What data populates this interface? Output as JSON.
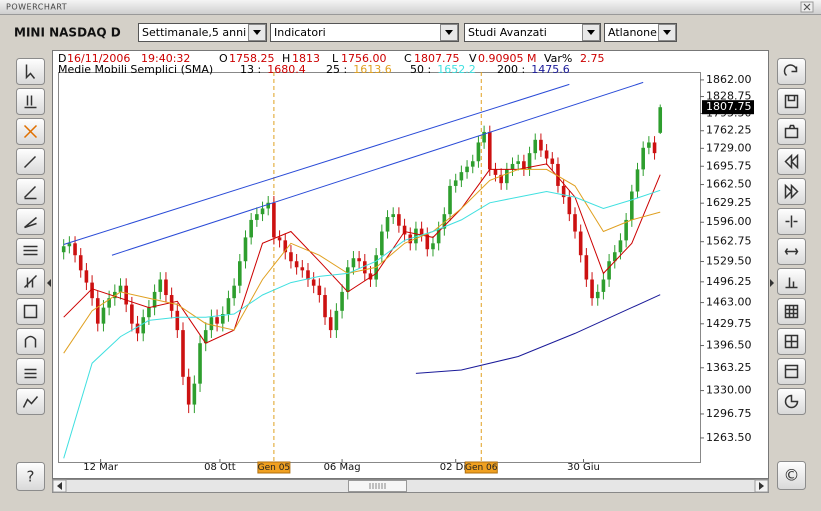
{
  "window": {
    "title": "POWERCHART"
  },
  "toolbar": {
    "symbol": "MINI NASDAQ D",
    "period": "Settimanale,5 anni",
    "indicators": "Indicatori",
    "studies": "Studi Avanzati",
    "style": "Atlanone"
  },
  "buttons": {
    "help": "?",
    "copyright": "©"
  },
  "info": {
    "date_prefix": "D",
    "date": "16/11/2006",
    "time": "19:40:32",
    "o_prefix": "O",
    "h_prefix": "H",
    "l_prefix": "L",
    "low": "1756.00",
    "c_prefix": "C",
    "v_prefix": "V",
    "volume": "0.90905 M",
    "var_prefix": "Var%",
    "var": 2.75
  },
  "chart_data": {
    "type": "candlestick",
    "log_scale": true,
    "grid": false,
    "legend_title": "Medie Mobili Semplici (SMA)",
    "up_color": "#2e9e2e",
    "down_color": "#cc1111",
    "xlim": [
      -1,
      112
    ],
    "ylim": [
      1231,
      1878
    ],
    "xticks": [
      {
        "value": 6.5,
        "label": "12 Mar"
      },
      {
        "value": 27.5,
        "label": "08 Ott"
      },
      {
        "value": 49,
        "label": "06 Mag"
      },
      {
        "value": 69,
        "label": "02 Dic"
      },
      {
        "value": 91.5,
        "label": "30 Giu"
      }
    ],
    "yticks": [
      {
        "value": 1862,
        "label": "1862.00"
      },
      {
        "value": 1828.75,
        "label": "1828.75"
      },
      {
        "value": 1795.5,
        "label": "1795.50"
      },
      {
        "value": 1762.25,
        "label": "1762.25"
      },
      {
        "value": 1729,
        "label": "1729.00"
      },
      {
        "value": 1695.75,
        "label": "1695.75"
      },
      {
        "value": 1662.5,
        "label": "1662.50"
      },
      {
        "value": 1629.25,
        "label": "1629.25"
      },
      {
        "value": 1596,
        "label": "1596.00"
      },
      {
        "value": 1562.75,
        "label": "1562.75"
      },
      {
        "value": 1529.5,
        "label": "1529.50"
      },
      {
        "value": 1496.25,
        "label": "1496.25"
      },
      {
        "value": 1463,
        "label": "1463.00"
      },
      {
        "value": 1429.75,
        "label": "1429.75"
      },
      {
        "value": 1396.5,
        "label": "1396.50"
      },
      {
        "value": 1363.25,
        "label": "1363.25"
      },
      {
        "value": 1330,
        "label": "1330.00"
      },
      {
        "value": 1296.75,
        "label": "1296.75"
      },
      {
        "value": 1263.5,
        "label": "1263.50"
      }
    ],
    "separators": [
      {
        "x": 37,
        "label": "Gen 05"
      },
      {
        "x": 73.5,
        "label": "Gen 06"
      }
    ],
    "open": [
      1545,
      1555,
      1560,
      1540,
      1515,
      1495,
      1470,
      1430,
      1455,
      1470,
      1480,
      1490,
      1460,
      1430,
      1415,
      1440,
      1455,
      1480,
      1500,
      1475,
      1450,
      1420,
      1350,
      1310,
      1340,
      1400,
      1420,
      1440,
      1430,
      1445,
      1470,
      1490,
      1530,
      1570,
      1600,
      1610,
      1620,
      1630,
      1570,
      1565,
      1545,
      1530,
      1520,
      1515,
      1500,
      1490,
      1475,
      1440,
      1420,
      1450,
      1480,
      1520,
      1535,
      1530,
      1510,
      1500,
      1540,
      1580,
      1605,
      1610,
      1590,
      1575,
      1560,
      1585,
      1575,
      1550,
      1560,
      1585,
      1610,
      1660,
      1670,
      1685,
      1695,
      1705,
      1740,
      1760,
      1690,
      1680,
      1665,
      1690,
      1700,
      1705,
      1690,
      1720,
      1745,
      1725,
      1710,
      1700,
      1660,
      1640,
      1610,
      1580,
      1540,
      1500,
      1470,
      1480,
      1500,
      1530,
      1545,
      1565,
      1600,
      1650,
      1690,
      1730,
      1740,
      1758.25
    ],
    "high": [
      1567,
      1572,
      1572,
      1552,
      1527,
      1507,
      1482,
      1467,
      1482,
      1492,
      1502,
      1502,
      1472,
      1442,
      1452,
      1467,
      1492,
      1512,
      1512,
      1487,
      1462,
      1432,
      1362,
      1352,
      1412,
      1432,
      1452,
      1452,
      1457,
      1482,
      1502,
      1542,
      1582,
      1612,
      1622,
      1632,
      1642,
      1642,
      1582,
      1577,
      1557,
      1542,
      1532,
      1527,
      1512,
      1502,
      1487,
      1452,
      1462,
      1492,
      1532,
      1547,
      1547,
      1542,
      1522,
      1552,
      1592,
      1617,
      1622,
      1622,
      1602,
      1587,
      1597,
      1597,
      1587,
      1572,
      1597,
      1622,
      1672,
      1682,
      1697,
      1707,
      1717,
      1752,
      1772,
      1772,
      1702,
      1692,
      1702,
      1712,
      1717,
      1717,
      1732,
      1757,
      1757,
      1737,
      1722,
      1712,
      1672,
      1652,
      1622,
      1592,
      1552,
      1512,
      1492,
      1512,
      1542,
      1557,
      1577,
      1612,
      1662,
      1702,
      1742,
      1752,
      1752,
      1813
    ],
    "low": [
      1533,
      1543,
      1528,
      1503,
      1483,
      1458,
      1418,
      1418,
      1443,
      1458,
      1468,
      1448,
      1418,
      1403,
      1403,
      1428,
      1443,
      1468,
      1463,
      1438,
      1408,
      1338,
      1298,
      1298,
      1328,
      1388,
      1408,
      1418,
      1418,
      1433,
      1458,
      1478,
      1518,
      1558,
      1588,
      1598,
      1608,
      1558,
      1553,
      1533,
      1518,
      1508,
      1503,
      1488,
      1478,
      1463,
      1428,
      1408,
      1408,
      1438,
      1468,
      1508,
      1518,
      1498,
      1488,
      1488,
      1528,
      1568,
      1593,
      1578,
      1563,
      1548,
      1548,
      1563,
      1538,
      1538,
      1548,
      1573,
      1598,
      1648,
      1658,
      1673,
      1683,
      1693,
      1728,
      1678,
      1668,
      1653,
      1653,
      1678,
      1688,
      1678,
      1678,
      1708,
      1713,
      1698,
      1688,
      1648,
      1628,
      1598,
      1568,
      1528,
      1488,
      1458,
      1458,
      1468,
      1488,
      1518,
      1533,
      1553,
      1588,
      1638,
      1678,
      1718,
      1708,
      1756
    ],
    "close": [
      1555,
      1560,
      1540,
      1515,
      1495,
      1470,
      1430,
      1455,
      1470,
      1480,
      1490,
      1460,
      1430,
      1415,
      1440,
      1455,
      1480,
      1500,
      1475,
      1450,
      1420,
      1350,
      1310,
      1340,
      1400,
      1420,
      1440,
      1430,
      1445,
      1470,
      1490,
      1530,
      1570,
      1600,
      1610,
      1620,
      1630,
      1570,
      1565,
      1545,
      1530,
      1520,
      1515,
      1500,
      1490,
      1475,
      1440,
      1420,
      1450,
      1480,
      1520,
      1535,
      1530,
      1510,
      1500,
      1540,
      1580,
      1605,
      1610,
      1590,
      1575,
      1560,
      1585,
      1575,
      1550,
      1560,
      1585,
      1610,
      1660,
      1670,
      1685,
      1695,
      1705,
      1740,
      1760,
      1690,
      1680,
      1665,
      1690,
      1700,
      1705,
      1690,
      1720,
      1745,
      1725,
      1710,
      1700,
      1660,
      1640,
      1610,
      1580,
      1540,
      1500,
      1470,
      1480,
      1500,
      1530,
      1545,
      1565,
      1600,
      1650,
      1690,
      1730,
      1740,
      1720,
      1807.75
    ],
    "series": [
      {
        "name": "13 :",
        "color": "#cc0000",
        "x": [
          0,
          5,
          10,
          15,
          20,
          25,
          30,
          35,
          40,
          45,
          50,
          55,
          60,
          65,
          70,
          75,
          80,
          85,
          90,
          95,
          100,
          105
        ],
        "values": [
          1440,
          1485,
          1470,
          1455,
          1465,
          1400,
          1420,
          1560,
          1580,
          1530,
          1480,
          1510,
          1580,
          1570,
          1620,
          1690,
          1690,
          1700,
          1640,
          1510,
          1560,
          1680.4
        ]
      },
      {
        "name": "25 :",
        "color": "#e0a020",
        "x": [
          0,
          5,
          10,
          15,
          20,
          25,
          30,
          35,
          40,
          45,
          50,
          55,
          60,
          65,
          70,
          75,
          80,
          85,
          90,
          95,
          100,
          105
        ],
        "values": [
          1385,
          1450,
          1480,
          1470,
          1460,
          1430,
          1420,
          1500,
          1560,
          1540,
          1510,
          1520,
          1560,
          1580,
          1620,
          1670,
          1690,
          1690,
          1660,
          1580,
          1600,
          1613.6
        ]
      },
      {
        "name": "50 :",
        "color": "#40e0e0",
        "x": [
          0,
          5,
          10,
          15,
          20,
          25,
          30,
          35,
          40,
          45,
          50,
          55,
          60,
          65,
          70,
          75,
          80,
          85,
          90,
          95,
          100,
          105
        ],
        "values": [
          1236,
          1370,
          1410,
          1435,
          1440,
          1440,
          1445,
          1475,
          1495,
          1505,
          1510,
          1530,
          1565,
          1580,
          1600,
          1630,
          1640,
          1650,
          1640,
          1620,
          1635,
          1652.2
        ]
      },
      {
        "name": "200 :",
        "color": "#1a1a99",
        "x": [
          62,
          70,
          80,
          90,
          100,
          105
        ],
        "values": [
          1355,
          1360,
          1380,
          1415,
          1455,
          1475.6
        ]
      }
    ],
    "trendlines": [
      {
        "color": "#2a4bd7",
        "x": [
          0,
          89
        ],
        "values": [
          1558,
          1853
        ]
      },
      {
        "color": "#2a4bd7",
        "x": [
          8.5,
          102
        ],
        "values": [
          1540,
          1857
        ]
      }
    ]
  }
}
